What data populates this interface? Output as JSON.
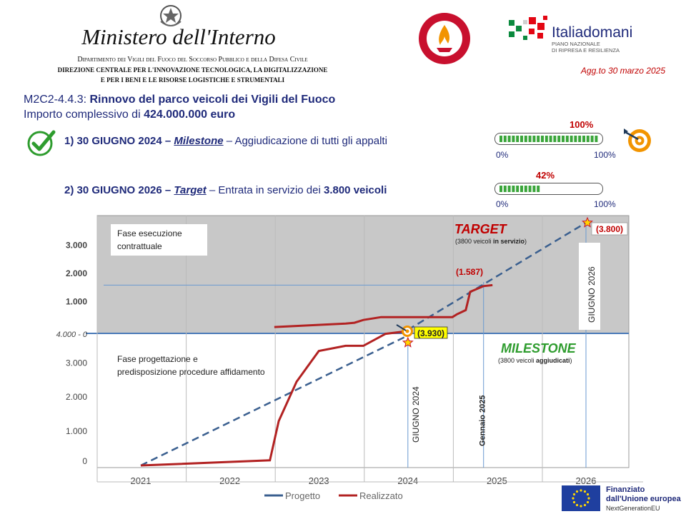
{
  "header": {
    "ministry_title": "Ministero dell'Interno",
    "dept_line": "Dipartimento dei Vigili del Fuoco del Soccorso Pubblico e della Difesa Civile",
    "direction_line": "DIREZIONE CENTRALE PER L'INNOVAZIONE TECNOLOGICA, LA DIGITALIZZAZIONE",
    "direction_line2": "E PER I BENI E LE RISORSE LOGISTICHE E STRUMENTALI",
    "vvf_logo_text": "VIGILI DEL FUOCO • CORPO NAZIONALE",
    "italia_domani_name": "Italiadomani",
    "italia_domani_sub1": "PIANO NAZIONALE",
    "italia_domani_sub2": "DI RIPRESA E RESILIENZA",
    "update_label": "Agg.to 30 marzo 2025"
  },
  "summary": {
    "code": "M2C2-4.4.3:",
    "title": "Rinnovo del parco veicoli dei Vigili del Fuoco",
    "amount_prefix": "Importo complessivo di",
    "amount": "424.000.000 euro"
  },
  "objectives": [
    {
      "date": "1) 30 GIUGNO 2024 –",
      "kind": "Milestone",
      "desc": "– Aggiudicazione di tutti gli appalti",
      "desc_bold": "",
      "progress": 100,
      "progress_label": "100%",
      "min_label": "0%",
      "max_label": "100%"
    },
    {
      "date": "2) 30 GIUGNO 2026 –",
      "kind": "Target",
      "desc": "– Entrata in servizio dei",
      "desc_bold": "3.800 veicoli",
      "progress": 42,
      "progress_label": "42%",
      "min_label": "0%",
      "max_label": "100%"
    }
  ],
  "chart_data": {
    "type": "line",
    "xlabel": "",
    "ylabel": "",
    "x_ticks": [
      "2021",
      "2022",
      "2023",
      "2024",
      "2025",
      "2026"
    ],
    "upper_panel": {
      "y_ticks": [
        "3.000",
        "2.000",
        "1.000"
      ],
      "phase_label": "Fase esecuzione contrattuale",
      "target_title": "TARGET",
      "target_note_prefix": "(3800 veicoli",
      "target_note_bold": "in servizio",
      "target_note_suffix": ")",
      "ylim": [
        0,
        3800
      ],
      "series": [
        {
          "name": "Progetto",
          "color": "#3a5f8f",
          "style": "dashed",
          "x": [
            2024.0,
            2026.0
          ],
          "y": [
            0,
            3800
          ]
        },
        {
          "name": "Realizzato",
          "color": "#b22222",
          "style": "solid",
          "x": [
            2022.5,
            2023.3,
            2023.4,
            2023.5,
            2023.7,
            2024.15,
            2024.5,
            2024.55,
            2024.65,
            2024.7,
            2024.85,
            2024.95
          ],
          "y": [
            100,
            220,
            250,
            350,
            450,
            450,
            450,
            550,
            700,
            1350,
            1550,
            1587
          ]
        }
      ],
      "labels": [
        {
          "text": "(1.587)",
          "x": 2024.95,
          "y": 1587
        },
        {
          "text": "(3.800)",
          "x": 2026.0,
          "y": 3800
        }
      ]
    },
    "lower_panel": {
      "y_ticks": [
        "3.000",
        "2.000",
        "1.000",
        "0"
      ],
      "zero_axis_label": "4.000 - 0",
      "phase_label": "Fase progettazione e predisposizione procedure affidamento",
      "milestone_title": "MILESTONE",
      "milestone_note_prefix": "(3800 veicoli",
      "milestone_note_bold": "aggiudicati",
      "milestone_note_suffix": ")",
      "ylim": [
        0,
        3800
      ],
      "series": [
        {
          "name": "Progetto",
          "color": "#3a5f8f",
          "style": "dashed",
          "x": [
            2021.0,
            2024.0
          ],
          "y": [
            0,
            3800
          ]
        },
        {
          "name": "Realizzato",
          "color": "#b22222",
          "style": "solid",
          "x": [
            2021.0,
            2022.45,
            2022.55,
            2022.75,
            2023.0,
            2023.3,
            2023.5,
            2023.75,
            2024.0
          ],
          "y": [
            0,
            150,
            1300,
            2450,
            3350,
            3500,
            3500,
            3850,
            3930
          ]
        }
      ],
      "labels": [
        {
          "text": "(3.930)",
          "x": 2024.0,
          "y": 3930
        }
      ]
    },
    "vertical_markers": [
      {
        "label": "GIUGNO 2024",
        "x": 2024.0
      },
      {
        "label": "Gennaio 2025",
        "x": 2024.85
      },
      {
        "label": "GIUGNO 2026",
        "x": 2026.0
      }
    ],
    "legend": {
      "placement": "bottom",
      "items": [
        "Progetto",
        "Realizzato"
      ]
    }
  },
  "footer": {
    "eu_line1": "Finanziato",
    "eu_line2": "dall'Unione europea",
    "eu_line3": "NextGenerationEU"
  },
  "colors": {
    "navy": "#1f2a7a",
    "red": "#c00000",
    "progress_green": "#3aa53a",
    "plan_blue": "#3a5f8f",
    "actual_red": "#b22222",
    "upper_bg": "#c8c8c8"
  }
}
